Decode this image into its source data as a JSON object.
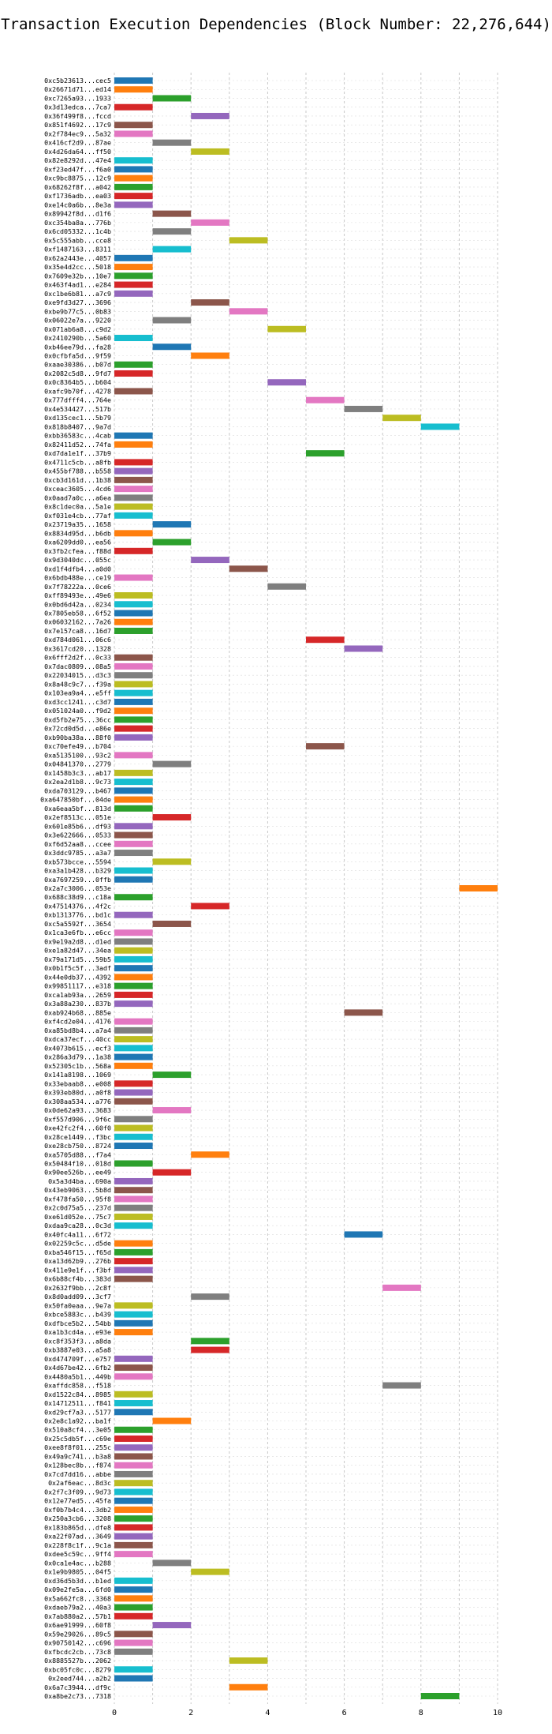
{
  "chart_data": {
    "type": "bar",
    "orientation": "horizontal",
    "title": "Transaction Execution Dependencies (Block Number: 22,276,644)",
    "xlabel": "",
    "ylabel": "",
    "xlim": [
      0,
      10
    ],
    "xticks": [
      "0",
      "2",
      "4",
      "6",
      "8",
      "10"
    ],
    "grid": true,
    "legend": "none",
    "colors": [
      "#1f77b4",
      "#ff7f0e",
      "#2ca02c",
      "#d62728",
      "#9467bd",
      "#8c564b",
      "#e377c2",
      "#7f7f7f",
      "#bcbd22",
      "#17becf"
    ],
    "rows": [
      {
        "label": "0xc5b23613...cec5",
        "start": 0,
        "end": 1
      },
      {
        "label": "0x26671d71...ed14",
        "start": 0,
        "end": 1
      },
      {
        "label": "0xc7265a93...1933",
        "start": 1,
        "end": 2
      },
      {
        "label": "0x3d13edca...7ca7",
        "start": 0,
        "end": 1
      },
      {
        "label": "0x36f499f8...fccd",
        "start": 2,
        "end": 3
      },
      {
        "label": "0x851f4692...17c9",
        "start": 0,
        "end": 1
      },
      {
        "label": "0x2f784ec9...5a32",
        "start": 0,
        "end": 1
      },
      {
        "label": "0x416cf2d9...87ae",
        "start": 1,
        "end": 2
      },
      {
        "label": "0x4d26da64...ff50",
        "start": 2,
        "end": 3
      },
      {
        "label": "0x82e8292d...47e4",
        "start": 0,
        "end": 1
      },
      {
        "label": "0xf23ed47f...f6a0",
        "start": 0,
        "end": 1
      },
      {
        "label": "0xc9bc8875...12c9",
        "start": 0,
        "end": 1
      },
      {
        "label": "0x68262f8f...a042",
        "start": 0,
        "end": 1
      },
      {
        "label": "0xf1736adb...ea03",
        "start": 0,
        "end": 1
      },
      {
        "label": "0xe14c0a6b...8e3a",
        "start": 0,
        "end": 1
      },
      {
        "label": "0x89942f8d...d1f6",
        "start": 1,
        "end": 2
      },
      {
        "label": "0xc354ba8a...776b",
        "start": 2,
        "end": 3
      },
      {
        "label": "0x6cd05332...1c4b",
        "start": 1,
        "end": 2
      },
      {
        "label": "0x5c555abb...cce8",
        "start": 3,
        "end": 4
      },
      {
        "label": "0xf1487163...8311",
        "start": 1,
        "end": 2
      },
      {
        "label": "0x62a2443e...4057",
        "start": 0,
        "end": 1
      },
      {
        "label": "0x35e4d2cc...5018",
        "start": 0,
        "end": 1
      },
      {
        "label": "0x7609e32b...10e7",
        "start": 0,
        "end": 1
      },
      {
        "label": "0x463f4ad1...e284",
        "start": 0,
        "end": 1
      },
      {
        "label": "0xc1be6b81...a7c9",
        "start": 0,
        "end": 1
      },
      {
        "label": "0xe9fd3d27...3696",
        "start": 2,
        "end": 3
      },
      {
        "label": "0xbe9b77c5...0b83",
        "start": 3,
        "end": 4
      },
      {
        "label": "0x06022e7a...9220",
        "start": 1,
        "end": 2
      },
      {
        "label": "0x071ab6a8...c9d2",
        "start": 4,
        "end": 5
      },
      {
        "label": "0x2410290b...5a60",
        "start": 0,
        "end": 1
      },
      {
        "label": "0xb46ee79d...fa28",
        "start": 1,
        "end": 2
      },
      {
        "label": "0x0cfbfa5d...9f59",
        "start": 2,
        "end": 3
      },
      {
        "label": "0xaae30386...b07d",
        "start": 0,
        "end": 1
      },
      {
        "label": "0x2082c5d8...9fd7",
        "start": 0,
        "end": 1
      },
      {
        "label": "0x0c8364b5...b604",
        "start": 4,
        "end": 5
      },
      {
        "label": "0xafc9b70f...4278",
        "start": 0,
        "end": 1
      },
      {
        "label": "0x777dfff4...764e",
        "start": 5,
        "end": 6
      },
      {
        "label": "0x4e534427...517b",
        "start": 6,
        "end": 7
      },
      {
        "label": "0xd135cec1...5b79",
        "start": 7,
        "end": 8
      },
      {
        "label": "0x818b8407...9a7d",
        "start": 8,
        "end": 9
      },
      {
        "label": "0xbb36583c...4cab",
        "start": 0,
        "end": 1
      },
      {
        "label": "0x82411d52...74fa",
        "start": 0,
        "end": 1
      },
      {
        "label": "0xd7da1e1f...37b9",
        "start": 5,
        "end": 6
      },
      {
        "label": "0x4711c5cb...a8fb",
        "start": 0,
        "end": 1
      },
      {
        "label": "0x455bf788...b558",
        "start": 0,
        "end": 1
      },
      {
        "label": "0xcb3d161d...1b38",
        "start": 0,
        "end": 1
      },
      {
        "label": "0xceac3605...4cd6",
        "start": 0,
        "end": 1
      },
      {
        "label": "0x0aad7a0c...a6ea",
        "start": 0,
        "end": 1
      },
      {
        "label": "0x8c1dec0a...5a1e",
        "start": 0,
        "end": 1
      },
      {
        "label": "0xf031e4cb...77af",
        "start": 0,
        "end": 1
      },
      {
        "label": "0x23719a35...1658",
        "start": 1,
        "end": 2
      },
      {
        "label": "0x8834d95d...b6db",
        "start": 0,
        "end": 1
      },
      {
        "label": "0xa6209dd0...ea56",
        "start": 1,
        "end": 2
      },
      {
        "label": "0x3fb2cfea...f88d",
        "start": 0,
        "end": 1
      },
      {
        "label": "0x9d3040dc...055c",
        "start": 2,
        "end": 3
      },
      {
        "label": "0xd1f4dfb4...a0d0",
        "start": 3,
        "end": 4
      },
      {
        "label": "0x6bdb488e...ce19",
        "start": 0,
        "end": 1
      },
      {
        "label": "0x7f78222a...0ce6",
        "start": 4,
        "end": 5
      },
      {
        "label": "0xff89493e...49e6",
        "start": 0,
        "end": 1
      },
      {
        "label": "0x0bd6d42a...0234",
        "start": 0,
        "end": 1
      },
      {
        "label": "0x7805eb58...6f52",
        "start": 0,
        "end": 1
      },
      {
        "label": "0x06032162...7a26",
        "start": 0,
        "end": 1
      },
      {
        "label": "0x7e157ca8...16d7",
        "start": 0,
        "end": 1
      },
      {
        "label": "0xd784d061...06c6",
        "start": 5,
        "end": 6
      },
      {
        "label": "0x3617cd20...1328",
        "start": 6,
        "end": 7
      },
      {
        "label": "0x6fff2d2f...0c33",
        "start": 0,
        "end": 1
      },
      {
        "label": "0x7dac0809...08a5",
        "start": 0,
        "end": 1
      },
      {
        "label": "0x22034015...d3c3",
        "start": 0,
        "end": 1
      },
      {
        "label": "0x8a48c9c7...f39a",
        "start": 0,
        "end": 1
      },
      {
        "label": "0x103ea9a4...e5ff",
        "start": 0,
        "end": 1
      },
      {
        "label": "0xd3cc1241...c3d7",
        "start": 0,
        "end": 1
      },
      {
        "label": "0x051024a0...f9d2",
        "start": 0,
        "end": 1
      },
      {
        "label": "0xd5fb2e75...36cc",
        "start": 0,
        "end": 1
      },
      {
        "label": "0x72cd0d5d...e86e",
        "start": 0,
        "end": 1
      },
      {
        "label": "0xb90ba38a...88f0",
        "start": 0,
        "end": 1
      },
      {
        "label": "0xc70efe49...b704",
        "start": 5,
        "end": 6
      },
      {
        "label": "0xa5135100...93c2",
        "start": 0,
        "end": 1
      },
      {
        "label": "0x04841370...2779",
        "start": 1,
        "end": 2
      },
      {
        "label": "0x1458b3c3...ab17",
        "start": 0,
        "end": 1
      },
      {
        "label": "0x2ea2d1b8...9c73",
        "start": 0,
        "end": 1
      },
      {
        "label": "0xda703129...b467",
        "start": 0,
        "end": 1
      },
      {
        "label": "0xa647850bf...04de",
        "start": 0,
        "end": 1
      },
      {
        "label": "0xa6eaa5bf...813d",
        "start": 0,
        "end": 1
      },
      {
        "label": "0x2ef8513c...051e",
        "start": 1,
        "end": 2
      },
      {
        "label": "0x601e85b6...df93",
        "start": 0,
        "end": 1
      },
      {
        "label": "0x3e622666...0533",
        "start": 0,
        "end": 1
      },
      {
        "label": "0xf6d52aa8...ccee",
        "start": 0,
        "end": 1
      },
      {
        "label": "0x3ddc9785...a3a7",
        "start": 0,
        "end": 1
      },
      {
        "label": "0xb573bcce...5594",
        "start": 1,
        "end": 2
      },
      {
        "label": "0xa3a1b428...b329",
        "start": 0,
        "end": 1
      },
      {
        "label": "0xa7697259...0ffb",
        "start": 0,
        "end": 1
      },
      {
        "label": "0x2a7c3006...053e",
        "start": 9,
        "end": 10
      },
      {
        "label": "0x688c38d9...c18a",
        "start": 0,
        "end": 1
      },
      {
        "label": "0x47514376...4f2c",
        "start": 2,
        "end": 3
      },
      {
        "label": "0xb1313776...bd1c",
        "start": 0,
        "end": 1
      },
      {
        "label": "0xc5a5592f...3654",
        "start": 1,
        "end": 2
      },
      {
        "label": "0x1ca3e6fb...e6cc",
        "start": 0,
        "end": 1
      },
      {
        "label": "0x9e19a2d8...d1ed",
        "start": 0,
        "end": 1
      },
      {
        "label": "0xe1a82d47...34ea",
        "start": 0,
        "end": 1
      },
      {
        "label": "0x79a171d5...59b5",
        "start": 0,
        "end": 1
      },
      {
        "label": "0x0b1f5c5f...3adf",
        "start": 0,
        "end": 1
      },
      {
        "label": "0x44e0db37...4392",
        "start": 0,
        "end": 1
      },
      {
        "label": "0x99851117...e318",
        "start": 0,
        "end": 1
      },
      {
        "label": "0xca1ab93a...2659",
        "start": 0,
        "end": 1
      },
      {
        "label": "0x3a88a230...837b",
        "start": 0,
        "end": 1
      },
      {
        "label": "0xab924b68...885e",
        "start": 6,
        "end": 7
      },
      {
        "label": "0xf4cd2e04...4176",
        "start": 0,
        "end": 1
      },
      {
        "label": "0xa85bd8b4...a7a4",
        "start": 0,
        "end": 1
      },
      {
        "label": "0xdca37ecf...40cc",
        "start": 0,
        "end": 1
      },
      {
        "label": "0x4073b615...ecf3",
        "start": 0,
        "end": 1
      },
      {
        "label": "0x286a3d79...1a38",
        "start": 0,
        "end": 1
      },
      {
        "label": "0x52305c1b...568a",
        "start": 0,
        "end": 1
      },
      {
        "label": "0x141a8198...1069",
        "start": 1,
        "end": 2
      },
      {
        "label": "0x33ebaab8...e008",
        "start": 0,
        "end": 1
      },
      {
        "label": "0x393eb80d...a0f8",
        "start": 0,
        "end": 1
      },
      {
        "label": "0x308aa534...a776",
        "start": 0,
        "end": 1
      },
      {
        "label": "0x0de62a93...3683",
        "start": 1,
        "end": 2
      },
      {
        "label": "0xf557d906...9f6c",
        "start": 0,
        "end": 1
      },
      {
        "label": "0xe42fc2f4...60f0",
        "start": 0,
        "end": 1
      },
      {
        "label": "0x28ce1449...f3bc",
        "start": 0,
        "end": 1
      },
      {
        "label": "0xe28cb750...8724",
        "start": 0,
        "end": 1
      },
      {
        "label": "0xa5705d88...f7a4",
        "start": 2,
        "end": 3
      },
      {
        "label": "0x50484f10...018d",
        "start": 0,
        "end": 1
      },
      {
        "label": "0x90ee526b...ee49",
        "start": 1,
        "end": 2
      },
      {
        "label": "0x5a3d4ba...690a",
        "start": 0,
        "end": 1
      },
      {
        "label": "0x43eb9063...5b8d",
        "start": 0,
        "end": 1
      },
      {
        "label": "0xf478fa50...95f8",
        "start": 0,
        "end": 1
      },
      {
        "label": "0x2c0d75a5...237d",
        "start": 0,
        "end": 1
      },
      {
        "label": "0xe61d052e...75c7",
        "start": 0,
        "end": 1
      },
      {
        "label": "0xdaa9ca28...0c3d",
        "start": 0,
        "end": 1
      },
      {
        "label": "0x40fc4a11...6f72",
        "start": 6,
        "end": 7
      },
      {
        "label": "0x02259c5c...d5de",
        "start": 0,
        "end": 1
      },
      {
        "label": "0xba546f15...f65d",
        "start": 0,
        "end": 1
      },
      {
        "label": "0xa13d62b9...276b",
        "start": 0,
        "end": 1
      },
      {
        "label": "0x411e9e1f...f3bf",
        "start": 0,
        "end": 1
      },
      {
        "label": "0x6b88cf4b...383d",
        "start": 0,
        "end": 1
      },
      {
        "label": "0x2632f9bb...2c8f",
        "start": 7,
        "end": 8
      },
      {
        "label": "0x8d0add09...3cf7",
        "start": 2,
        "end": 3
      },
      {
        "label": "0x50fa0eaa...9e7a",
        "start": 0,
        "end": 1
      },
      {
        "label": "0xbce5883c...b439",
        "start": 0,
        "end": 1
      },
      {
        "label": "0xdfbce5b2...54bb",
        "start": 0,
        "end": 1
      },
      {
        "label": "0xa1b3cd4a...e93e",
        "start": 0,
        "end": 1
      },
      {
        "label": "0xc8f353f3...a8da",
        "start": 2,
        "end": 3
      },
      {
        "label": "0xb3887e03...a5a8",
        "start": 2,
        "end": 3
      },
      {
        "label": "0xd474709f...e757",
        "start": 0,
        "end": 1
      },
      {
        "label": "0x4d67be42...6fb2",
        "start": 0,
        "end": 1
      },
      {
        "label": "0x4480a5b1...449b",
        "start": 0,
        "end": 1
      },
      {
        "label": "0xaffdc858...f518",
        "start": 7,
        "end": 8
      },
      {
        "label": "0xd1522c84...8985",
        "start": 0,
        "end": 1
      },
      {
        "label": "0x14712511...f841",
        "start": 0,
        "end": 1
      },
      {
        "label": "0xd29cf7a3...5177",
        "start": 0,
        "end": 1
      },
      {
        "label": "0x2e8c1a92...ba1f",
        "start": 1,
        "end": 2
      },
      {
        "label": "0x510a8cf4...3e05",
        "start": 0,
        "end": 1
      },
      {
        "label": "0x25c5db5f...c69e",
        "start": 0,
        "end": 1
      },
      {
        "label": "0xee8f8f01...255c",
        "start": 0,
        "end": 1
      },
      {
        "label": "0x49a9c741...b3a8",
        "start": 0,
        "end": 1
      },
      {
        "label": "0x128bec8b...f874",
        "start": 0,
        "end": 1
      },
      {
        "label": "0x7cd7dd16...abbe",
        "start": 0,
        "end": 1
      },
      {
        "label": "0x2af6eac...8d3c",
        "start": 0,
        "end": 1
      },
      {
        "label": "0x2f7c3f09...9d73",
        "start": 0,
        "end": 1
      },
      {
        "label": "0x12e77ed5...45fa",
        "start": 0,
        "end": 1
      },
      {
        "label": "0xf0b7b4c4...3db2",
        "start": 0,
        "end": 1
      },
      {
        "label": "0x250a3cb6...3208",
        "start": 0,
        "end": 1
      },
      {
        "label": "0x183b865d...dfe8",
        "start": 0,
        "end": 1
      },
      {
        "label": "0xa22f07ad...3649",
        "start": 0,
        "end": 1
      },
      {
        "label": "0x228f8c1f...9c1a",
        "start": 0,
        "end": 1
      },
      {
        "label": "0xdee5c59c...9ff4",
        "start": 0,
        "end": 1
      },
      {
        "label": "0x0ca1e4ac...b288",
        "start": 1,
        "end": 2
      },
      {
        "label": "0x1e9b9805...04f5",
        "start": 2,
        "end": 3
      },
      {
        "label": "0xd36d5b3d...b1ed",
        "start": 0,
        "end": 1
      },
      {
        "label": "0x09e2fe5a...6fd0",
        "start": 0,
        "end": 1
      },
      {
        "label": "0x5a662fc8...3368",
        "start": 0,
        "end": 1
      },
      {
        "label": "0xdaeb79a2...40a3",
        "start": 0,
        "end": 1
      },
      {
        "label": "0x7ab880a2...57b1",
        "start": 0,
        "end": 1
      },
      {
        "label": "0x6ae91999...60f8",
        "start": 1,
        "end": 2
      },
      {
        "label": "0x59e29026...89c5",
        "start": 0,
        "end": 1
      },
      {
        "label": "0x90750142...c696",
        "start": 0,
        "end": 1
      },
      {
        "label": "0xfbcdc2cb...73c8",
        "start": 0,
        "end": 1
      },
      {
        "label": "0x8885527b...2062",
        "start": 3,
        "end": 4
      },
      {
        "label": "0xbc05fc0c...8279",
        "start": 0,
        "end": 1
      },
      {
        "label": "0x2eed744...a2b2",
        "start": 0,
        "end": 1
      },
      {
        "label": "0x6a7c3944...df9c",
        "start": 3,
        "end": 4
      },
      {
        "label": "0xa8be2c73...7318",
        "start": 8,
        "end": 9
      }
    ]
  }
}
